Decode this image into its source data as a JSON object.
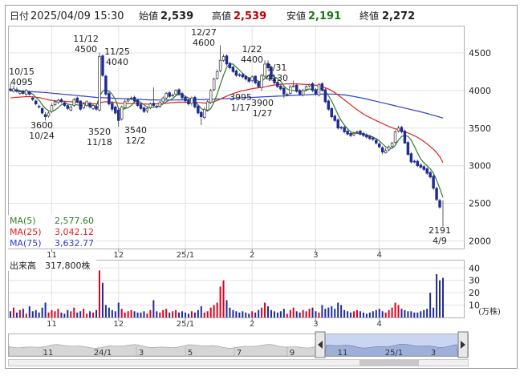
{
  "header": {
    "date_label": "日付",
    "datetime": "2025/04/09 15:30",
    "open_label": "始値",
    "open_value": "2,539",
    "high_label": "高値",
    "high_value": "2,539",
    "low_label": "安値",
    "low_value": "2,191",
    "close_label": "終値",
    "close_value": "2,272"
  },
  "legend": {
    "ma5_label": "MA(5)",
    "ma5_value": "2,577.60",
    "ma25_label": "MA(25)",
    "ma25_value": "3,042.12",
    "ma75_label": "MA(75)",
    "ma75_value": "3,632.77"
  },
  "volume_panel": {
    "title": "出来高",
    "value": "317,800株",
    "unit": "(万株)"
  },
  "colors": {
    "up": "#e0001e",
    "down": "#1f2b9a",
    "ma5": "#2a7f2a",
    "ma25": "#e02020",
    "ma75": "#2a3fd0",
    "grid": "#e3e3e3",
    "high_value": "#c00000",
    "low_value": "#1a7a1a"
  },
  "chart_data": [
    {
      "type": "candlestick",
      "y_axis_ticks": [
        2000,
        2500,
        3000,
        3500,
        4000,
        4500
      ],
      "ylim": [
        1900,
        4850
      ],
      "x_month_labels": [
        "11",
        "12",
        "25/1",
        "2",
        "3",
        "4"
      ],
      "annotations": [
        {
          "text": "10/15\n4095",
          "kind": "high"
        },
        {
          "text": "11/12\n4500",
          "kind": "high"
        },
        {
          "text": "11/25\n4040",
          "kind": "high"
        },
        {
          "text": "12/27\n4600",
          "kind": "high"
        },
        {
          "text": "1/22\n4400",
          "kind": "high"
        },
        {
          "text": "1/31\n4130",
          "kind": "high"
        },
        {
          "text": "3600\n10/24",
          "kind": "low"
        },
        {
          "text": "3520\n11/18",
          "kind": "low"
        },
        {
          "text": "3540\n12/2",
          "kind": "low"
        },
        {
          "text": "3995\n1/17",
          "kind": "low"
        },
        {
          "text": "3900\n1/27",
          "kind": "low"
        },
        {
          "text": "2191\n4/9",
          "kind": "low"
        }
      ],
      "series_close": [
        4000,
        4020,
        3990,
        3980,
        3960,
        4000,
        3950,
        3880,
        3820,
        3780,
        3700,
        3650,
        3700,
        3800,
        3850,
        3870,
        3850,
        3800,
        3760,
        3780,
        3880,
        3850,
        3750,
        3820,
        3850,
        3780,
        3800,
        3750,
        4450,
        4200,
        3950,
        3820,
        3750,
        3700,
        3600,
        3780,
        3850,
        3880,
        3900,
        3860,
        3800,
        3760,
        3720,
        3760,
        3820,
        3800,
        3780,
        3840,
        3900,
        3960,
        3920,
        3940,
        4000,
        3950,
        3900,
        3860,
        3820,
        3900,
        3780,
        3700,
        3650,
        3750,
        3850,
        4000,
        4150,
        4250,
        4400,
        4450,
        4350,
        4300,
        4250,
        4200,
        4200,
        4180,
        4150,
        4120,
        4180,
        4100,
        4050,
        4200,
        4350,
        4300,
        4150,
        4100,
        4050,
        4020,
        3950,
        3950,
        4050,
        4060,
        3990,
        3950,
        4000,
        4050,
        4080,
        4000,
        3950,
        4080,
        4000,
        3850,
        3750,
        3650,
        3600,
        3500,
        3500,
        3450,
        3420,
        3400,
        3430,
        3450,
        3420,
        3400,
        3380,
        3360,
        3350,
        3300,
        3250,
        3180,
        3200,
        3250,
        3300,
        3450,
        3500,
        3450,
        3300,
        3150,
        3050,
        3050,
        3000,
        2980,
        2950,
        2900,
        2850,
        2700,
        2550,
        2450,
        2272
      ],
      "series_open": [
        4020,
        3990,
        4010,
        3960,
        3990,
        3950,
        3980,
        3900,
        3860,
        3790,
        3760,
        3680,
        3660,
        3720,
        3810,
        3840,
        3880,
        3840,
        3800,
        3740,
        3800,
        3900,
        3860,
        3770,
        3800,
        3830,
        3760,
        3790,
        3740,
        4460,
        4190,
        3960,
        3830,
        3780,
        3740,
        3620,
        3770,
        3860,
        3890,
        3910,
        3870,
        3810,
        3770,
        3730,
        3770,
        3830,
        3790,
        3790,
        3850,
        3900,
        3970,
        3930,
        3950,
        4010,
        3960,
        3910,
        3870,
        3830,
        3910,
        3790,
        3710,
        3640,
        3740,
        3840,
        4010,
        4160,
        4260,
        4400,
        4460,
        4360,
        4310,
        4260,
        4210,
        4210,
        4190,
        4160,
        4130,
        4190,
        4110,
        4040,
        4190,
        4360,
        4310,
        4160,
        4110,
        4060,
        4030,
        3940,
        3960,
        4060,
        4070,
        4000,
        3940,
        4010,
        4060,
        4090,
        4010,
        3940,
        4090,
        4010,
        3860,
        3760,
        3660,
        3610,
        3510,
        3510,
        3460,
        3430,
        3410,
        3440,
        3460,
        3430,
        3410,
        3390,
        3370,
        3340,
        3290,
        3240,
        3170,
        3210,
        3260,
        3310,
        3460,
        3510,
        3460,
        3310,
        3160,
        3060,
        3060,
        3010,
        2990,
        2960,
        2910,
        2860,
        2700,
        2539
      ],
      "series_high": [
        4095,
        4060,
        4040,
        4000,
        4010,
        4020,
        4000,
        3920,
        3880,
        3810,
        3780,
        3710,
        3720,
        3830,
        3870,
        3890,
        3900,
        3850,
        3820,
        3800,
        3900,
        3920,
        3870,
        3840,
        3870,
        3850,
        3820,
        3810,
        4500,
        4480,
        4210,
        3980,
        3850,
        3800,
        3760,
        3800,
        3880,
        3900,
        3920,
        3930,
        3880,
        3830,
        3790,
        3780,
        3840,
        4040,
        3810,
        3860,
        3920,
        3980,
        3990,
        3960,
        4020,
        4030,
        3980,
        3930,
        3890,
        3920,
        3930,
        3810,
        3730,
        3780,
        3870,
        4020,
        4170,
        4280,
        4600,
        4480,
        4480,
        4380,
        4330,
        4280,
        4230,
        4230,
        4200,
        4170,
        4200,
        4200,
        4130,
        4220,
        4400,
        4400,
        4330,
        4180,
        4130,
        4080,
        4050,
        3970,
        4070,
        4130,
        4090,
        4020,
        4020,
        4070,
        4090,
        4110,
        4030,
        4100,
        4110,
        4030,
        3880,
        3780,
        3680,
        3630,
        3530,
        3530,
        3480,
        3450,
        3450,
        3470,
        3480,
        3450,
        3430,
        3410,
        3390,
        3360,
        3310,
        3260,
        3230,
        3270,
        3320,
        3470,
        3530,
        3530,
        3480,
        3330,
        3180,
        3080,
        3080,
        3030,
        3010,
        2980,
        2930,
        2880,
        2720,
        2560,
        2539
      ],
      "series_low": [
        3980,
        3970,
        3970,
        3940,
        3940,
        3930,
        3930,
        3860,
        3800,
        3760,
        3680,
        3600,
        3640,
        3700,
        3790,
        3820,
        3830,
        3780,
        3740,
        3720,
        3780,
        3830,
        3730,
        3750,
        3780,
        3760,
        3740,
        3730,
        3720,
        4180,
        3930,
        3800,
        3720,
        3680,
        3520,
        3600,
        3750,
        3840,
        3870,
        3840,
        3780,
        3740,
        3700,
        3700,
        3750,
        3780,
        3760,
        3770,
        3830,
        3880,
        3900,
        3910,
        3930,
        3930,
        3880,
        3840,
        3800,
        3800,
        3760,
        3680,
        3540,
        3620,
        3720,
        3820,
        3990,
        4140,
        4240,
        4380,
        4330,
        4280,
        4230,
        4180,
        4180,
        4160,
        4130,
        4100,
        4110,
        4080,
        4030,
        3995,
        4170,
        4280,
        4130,
        4080,
        4030,
        4000,
        3900,
        3920,
        3940,
        4040,
        3970,
        3930,
        3920,
        3990,
        4040,
        3980,
        3930,
        3920,
        3980,
        3830,
        3730,
        3630,
        3580,
        3480,
        3480,
        3430,
        3400,
        3380,
        3390,
        3420,
        3400,
        3380,
        3360,
        3340,
        3330,
        3280,
        3230,
        3150,
        3160,
        3190,
        3240,
        3290,
        3440,
        3430,
        3290,
        3130,
        3030,
        3030,
        2980,
        2960,
        2930,
        2880,
        2830,
        2680,
        2530,
        2430,
        2191
      ],
      "ma5": [
        4000,
        4005,
        4003,
        3998,
        3990,
        3984,
        3976,
        3950,
        3910,
        3870,
        3810,
        3760,
        3730,
        3720,
        3740,
        3770,
        3810,
        3830,
        3820,
        3810,
        3810,
        3810,
        3800,
        3800,
        3810,
        3810,
        3800,
        3790,
        3920,
        3990,
        4010,
        3990,
        3950,
        3880,
        3760,
        3740,
        3760,
        3770,
        3800,
        3850,
        3860,
        3840,
        3810,
        3780,
        3770,
        3780,
        3780,
        3790,
        3820,
        3850,
        3870,
        3890,
        3930,
        3950,
        3940,
        3920,
        3900,
        3890,
        3850,
        3810,
        3760,
        3730,
        3730,
        3760,
        3840,
        3950,
        4080,
        4200,
        4310,
        4350,
        4350,
        4310,
        4270,
        4230,
        4190,
        4170,
        4160,
        4150,
        4120,
        4120,
        4160,
        4200,
        4210,
        4180,
        4160,
        4120,
        4060,
        4020,
        4000,
        4000,
        3990,
        3990,
        3990,
        4000,
        4020,
        4010,
        4000,
        4020,
        4020,
        3990,
        3930,
        3860,
        3770,
        3680,
        3600,
        3540,
        3490,
        3450,
        3440,
        3430,
        3420,
        3420,
        3410,
        3400,
        3380,
        3360,
        3330,
        3290,
        3250,
        3230,
        3230,
        3270,
        3340,
        3390,
        3400,
        3390,
        3340,
        3260,
        3170,
        3090,
        3040,
        3000,
        2960,
        2900,
        2810,
        2700,
        2578
      ],
      "ma25": [
        3900,
        3905,
        3910,
        3912,
        3915,
        3918,
        3918,
        3915,
        3910,
        3905,
        3895,
        3885,
        3875,
        3868,
        3862,
        3860,
        3858,
        3855,
        3852,
        3850,
        3846,
        3842,
        3838,
        3835,
        3832,
        3828,
        3824,
        3820,
        3835,
        3845,
        3850,
        3848,
        3845,
        3840,
        3832,
        3828,
        3826,
        3825,
        3826,
        3826,
        3824,
        3822,
        3820,
        3818,
        3818,
        3820,
        3822,
        3824,
        3826,
        3830,
        3834,
        3838,
        3842,
        3845,
        3844,
        3842,
        3840,
        3840,
        3842,
        3840,
        3836,
        3832,
        3834,
        3840,
        3850,
        3865,
        3885,
        3905,
        3925,
        3942,
        3958,
        3972,
        3985,
        3996,
        4006,
        4015,
        4024,
        4030,
        4035,
        4040,
        4048,
        4058,
        4066,
        4072,
        4078,
        4082,
        4085,
        4086,
        4087,
        4087,
        4086,
        4084,
        4082,
        4080,
        4078,
        4074,
        4068,
        4060,
        4050,
        4036,
        4018,
        3996,
        3970,
        3940,
        3908,
        3875,
        3842,
        3808,
        3776,
        3745,
        3715,
        3688,
        3662,
        3640,
        3620,
        3600,
        3580,
        3560,
        3540,
        3522,
        3505,
        3490,
        3478,
        3466,
        3452,
        3436,
        3418,
        3398,
        3376,
        3350,
        3322,
        3290,
        3256,
        3218,
        3176,
        3120,
        3042
      ],
      "ma75": [
        4000,
        3995,
        3992,
        3990,
        3988,
        3986,
        3984,
        3982,
        3980,
        3978,
        3975,
        3972,
        3968,
        3964,
        3960,
        3956,
        3952,
        3948,
        3944,
        3940,
        3936,
        3932,
        3928,
        3924,
        3920,
        3916,
        3912,
        3908,
        3906,
        3904,
        3902,
        3900,
        3898,
        3896,
        3894,
        3892,
        3890,
        3888,
        3886,
        3884,
        3882,
        3880,
        3878,
        3876,
        3875,
        3874,
        3873,
        3872,
        3872,
        3872,
        3872,
        3872,
        3873,
        3874,
        3875,
        3876,
        3877,
        3878,
        3879,
        3880,
        3880,
        3880,
        3881,
        3882,
        3884,
        3886,
        3888,
        3890,
        3892,
        3894,
        3896,
        3898,
        3900,
        3902,
        3904,
        3906,
        3908,
        3910,
        3912,
        3914,
        3916,
        3918,
        3920,
        3922,
        3924,
        3926,
        3928,
        3930,
        3932,
        3934,
        3936,
        3938,
        3940,
        3942,
        3944,
        3946,
        3948,
        3950,
        3951,
        3952,
        3952,
        3952,
        3950,
        3948,
        3944,
        3940,
        3934,
        3928,
        3920,
        3912,
        3904,
        3896,
        3886,
        3876,
        3866,
        3856,
        3846,
        3836,
        3826,
        3816,
        3806,
        3796,
        3786,
        3776,
        3766,
        3756,
        3746,
        3736,
        3726,
        3716,
        3706,
        3694,
        3682,
        3670,
        3658,
        3646,
        3633
      ]
    },
    {
      "type": "bar",
      "name_label": "出来高",
      "y_axis_ticks": [
        10,
        20,
        30,
        40
      ],
      "ylim": [
        0,
        46
      ],
      "x_month_labels": [
        "11",
        "12",
        "25/1",
        "2",
        "3",
        "4"
      ],
      "values": [
        5,
        8,
        4,
        6,
        7,
        3,
        9,
        5,
        6,
        4,
        8,
        12,
        4,
        6,
        5,
        7,
        4,
        3,
        6,
        5,
        8,
        4,
        5,
        7,
        3,
        5,
        4,
        6,
        38,
        28,
        10,
        8,
        6,
        5,
        12,
        7,
        4,
        5,
        6,
        5,
        4,
        4,
        5,
        3,
        6,
        14,
        5,
        4,
        6,
        7,
        4,
        5,
        6,
        4,
        5,
        4,
        3,
        5,
        4,
        6,
        9,
        4,
        5,
        8,
        10,
        12,
        25,
        30,
        14,
        8,
        6,
        5,
        4,
        5,
        4,
        3,
        5,
        4,
        6,
        8,
        12,
        9,
        6,
        5,
        4,
        5,
        7,
        3,
        6,
        8,
        5,
        4,
        6,
        5,
        7,
        8,
        5,
        4,
        10,
        7,
        8,
        9,
        7,
        12,
        10,
        6,
        5,
        4,
        5,
        6,
        5,
        4,
        3,
        4,
        5,
        6,
        7,
        5,
        4,
        6,
        8,
        12,
        10,
        7,
        6,
        5,
        5,
        4,
        4,
        5,
        6,
        7,
        20,
        8,
        35,
        30,
        32
      ]
    },
    {
      "type": "area",
      "name_label": "overview",
      "x_labels": [
        "11",
        "24/1",
        "3",
        "5",
        "7",
        "9",
        "11",
        "25/1",
        "3"
      ]
    }
  ]
}
